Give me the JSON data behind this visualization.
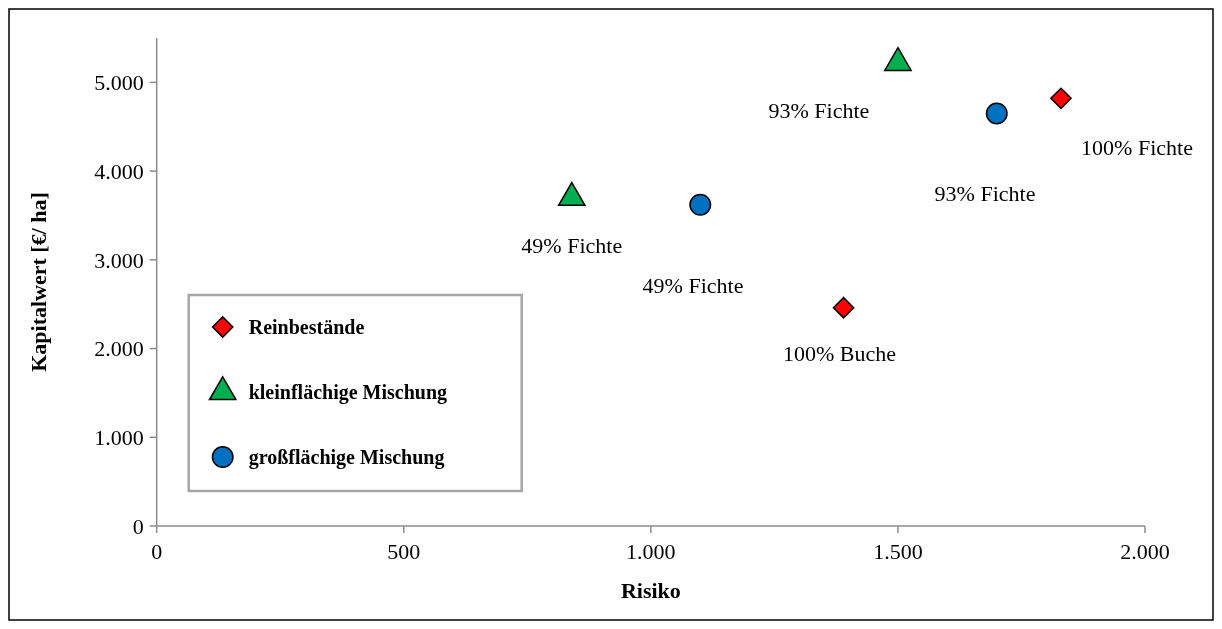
{
  "chart_data": {
    "type": "scatter",
    "xlabel": "Risiko",
    "ylabel": "Kapitalwert [€/ ha]",
    "xlim": [
      0,
      2000
    ],
    "xticks": [
      {
        "value": 0,
        "label": "0"
      },
      {
        "value": 500,
        "label": "500"
      },
      {
        "value": 1000,
        "label": "1.000"
      },
      {
        "value": 1500,
        "label": "1.500"
      },
      {
        "value": 2000,
        "label": "2.000"
      }
    ],
    "ylim": [
      0,
      5500
    ],
    "yticks": [
      {
        "value": 0,
        "label": "0"
      },
      {
        "value": 1000,
        "label": "1.000"
      },
      {
        "value": 2000,
        "label": "2.000"
      },
      {
        "value": 3000,
        "label": "3.000"
      },
      {
        "value": 4000,
        "label": "4.000"
      },
      {
        "value": 5000,
        "label": "5.000"
      }
    ],
    "grid": false,
    "legend": "bottom left",
    "series": [
      {
        "name": "Reinbestände",
        "color": "#ff0000",
        "marker": "diamond",
        "x": [
          1830,
          1390
        ],
        "values": [
          4820,
          2460
        ]
      },
      {
        "name": "kleinflächige Mischung",
        "color": "#00b050",
        "marker": "triangle",
        "x": [
          840,
          1500
        ],
        "values": [
          3700,
          5220
        ]
      },
      {
        "name": "großflächige Mischung",
        "color": "#0070c0",
        "marker": "circle",
        "x": [
          1100,
          1700
        ],
        "values": [
          3620,
          4650
        ]
      }
    ],
    "annotations": [
      {
        "text": "100% Fichte",
        "x": 1830,
        "y": 4820
      },
      {
        "text": "100% Buche",
        "x": 1390,
        "y": 2460
      },
      {
        "text": "49% Fichte",
        "x": 840,
        "y": 3700
      },
      {
        "text": "93% Fichte",
        "x": 1500,
        "y": 5220
      },
      "49% Fichte",
      "93% Fichte"
    ]
  }
}
